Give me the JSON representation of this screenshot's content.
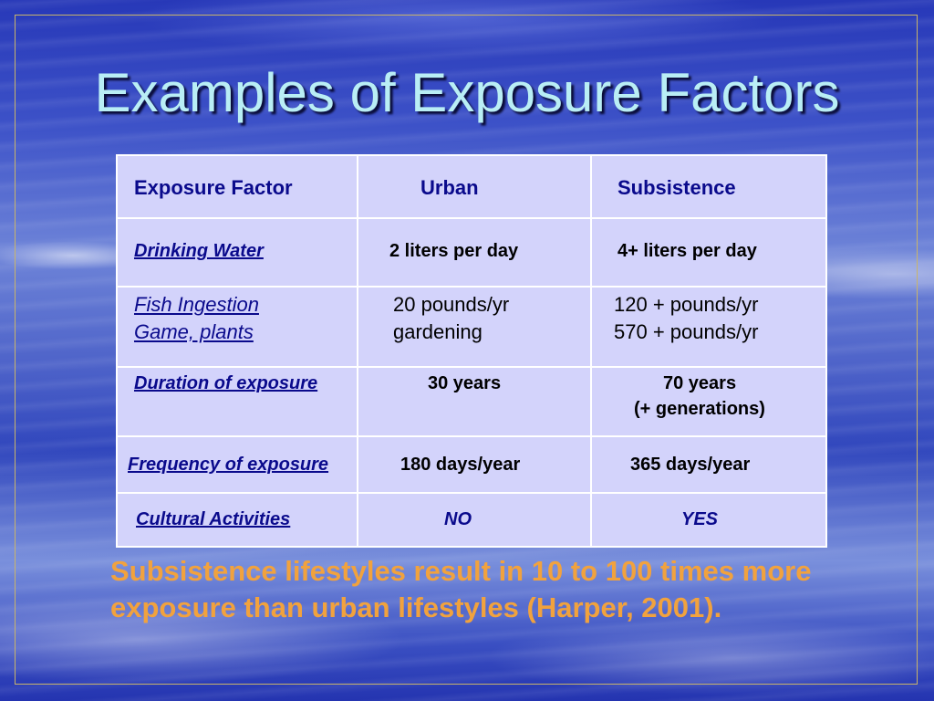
{
  "slide": {
    "title": "Examples of Exposure Factors",
    "summary_line1": "Subsistence lifestyles result in 10 to 100 times more",
    "summary_line2": "exposure than urban lifestyles (Harper, 2001)."
  },
  "table": {
    "headers": {
      "factor": "Exposure Factor",
      "urban": "Urban",
      "subsistence": "Subsistence"
    },
    "rows": [
      {
        "factor": "Drinking Water",
        "urban": "2 liters per day",
        "subsistence": "4+ liters per day"
      },
      {
        "factor_line1": "Fish Ingestion",
        "factor_line2": "Game, plants",
        "urban_line1": "20 pounds/yr",
        "urban_line2": "gardening",
        "subsistence_line1": "120 + pounds/yr",
        "subsistence_line2": "570 + pounds/yr"
      },
      {
        "factor": "Duration of exposure",
        "urban": "30 years",
        "subsistence_line1": "70 years",
        "subsistence_line2": "(+ generations)"
      },
      {
        "factor": "Frequency of exposure",
        "urban": "180 days/year",
        "subsistence": "365 days/year"
      },
      {
        "factor": "Cultural Activities",
        "urban": "NO",
        "subsistence": "YES"
      }
    ]
  },
  "colors": {
    "title": "#b9eef5",
    "table_background": "#d3d3fb",
    "label_blue": "#0a0a8c",
    "summary_orange": "#f1a23e",
    "frame_gold": "#c9b46a"
  }
}
